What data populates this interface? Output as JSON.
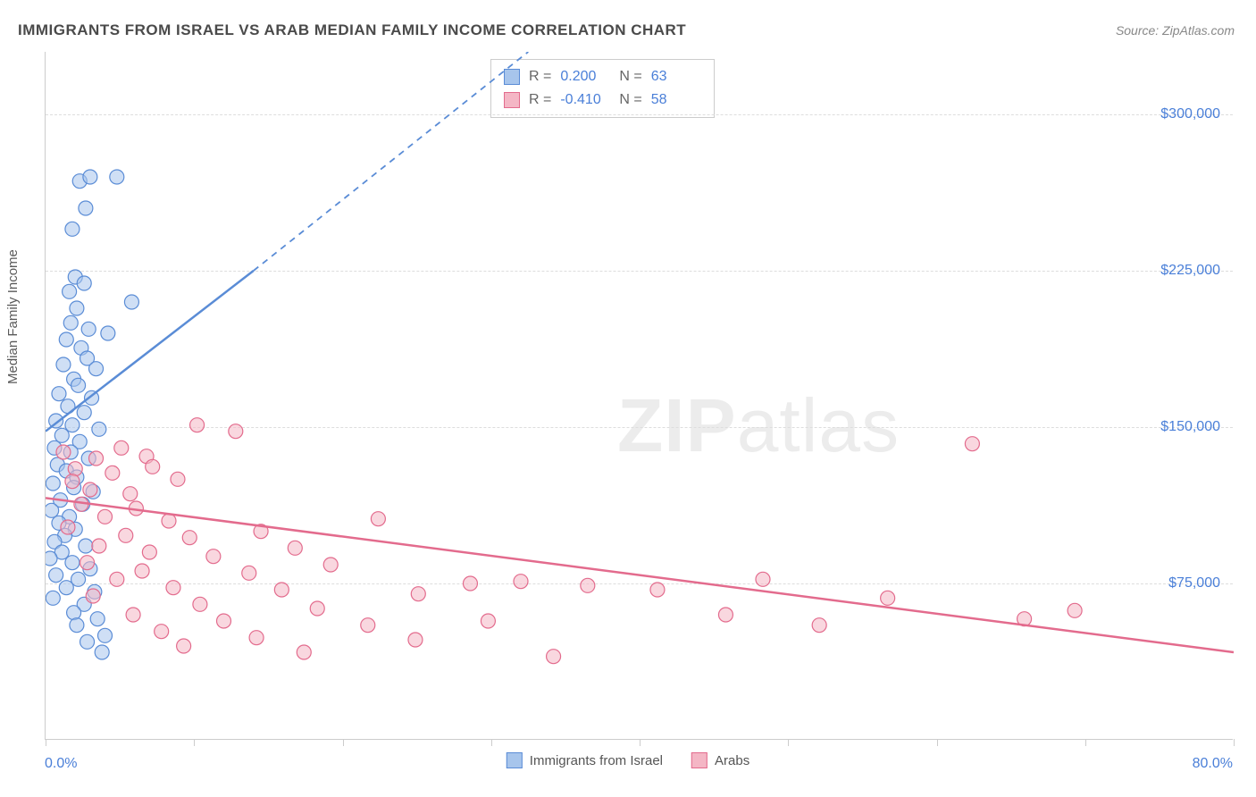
{
  "title": "IMMIGRANTS FROM ISRAEL VS ARAB MEDIAN FAMILY INCOME CORRELATION CHART",
  "source": "Source: ZipAtlas.com",
  "ylabel": "Median Family Income",
  "watermark_bold": "ZIP",
  "watermark_light": "atlas",
  "chart": {
    "type": "scatter",
    "xlim": [
      0,
      80
    ],
    "ylim": [
      0,
      330000
    ],
    "x_tick_positions": [
      0,
      10,
      20,
      30,
      40,
      50,
      60,
      70,
      80
    ],
    "x_tick_labels": {
      "left": "0.0%",
      "right": "80.0%"
    },
    "y_ticks": [
      {
        "value": 75000,
        "label": "$75,000"
      },
      {
        "value": 150000,
        "label": "$150,000"
      },
      {
        "value": 225000,
        "label": "$225,000"
      },
      {
        "value": 300000,
        "label": "$300,000"
      }
    ],
    "grid_color": "#dddddd",
    "axis_color": "#cccccc",
    "background_color": "#ffffff",
    "tick_label_color": "#4a7fd8",
    "marker_radius": 8,
    "marker_opacity": 0.55,
    "trend_line_width": 2.5,
    "series": [
      {
        "name": "Immigrants from Israel",
        "color_fill": "#a7c5ec",
        "color_stroke": "#5a8cd6",
        "r": 0.2,
        "n": 63,
        "trend": {
          "solid": {
            "x1": 0,
            "y1": 148000,
            "x2": 14,
            "y2": 225000
          },
          "dashed": {
            "x1": 14,
            "y1": 225000,
            "x2": 32.5,
            "y2": 330000
          }
        },
        "points": [
          [
            2.3,
            268000
          ],
          [
            3.0,
            270000
          ],
          [
            4.8,
            270000
          ],
          [
            2.7,
            255000
          ],
          [
            1.8,
            245000
          ],
          [
            2.0,
            222000
          ],
          [
            2.6,
            219000
          ],
          [
            1.6,
            215000
          ],
          [
            2.1,
            207000
          ],
          [
            5.8,
            210000
          ],
          [
            1.7,
            200000
          ],
          [
            2.9,
            197000
          ],
          [
            4.2,
            195000
          ],
          [
            1.4,
            192000
          ],
          [
            2.4,
            188000
          ],
          [
            2.8,
            183000
          ],
          [
            1.2,
            180000
          ],
          [
            3.4,
            178000
          ],
          [
            1.9,
            173000
          ],
          [
            2.2,
            170000
          ],
          [
            0.9,
            166000
          ],
          [
            3.1,
            164000
          ],
          [
            1.5,
            160000
          ],
          [
            2.6,
            157000
          ],
          [
            0.7,
            153000
          ],
          [
            1.8,
            151000
          ],
          [
            3.6,
            149000
          ],
          [
            1.1,
            146000
          ],
          [
            2.3,
            143000
          ],
          [
            0.6,
            140000
          ],
          [
            1.7,
            138000
          ],
          [
            2.9,
            135000
          ],
          [
            0.8,
            132000
          ],
          [
            1.4,
            129000
          ],
          [
            2.1,
            126000
          ],
          [
            0.5,
            123000
          ],
          [
            1.9,
            121000
          ],
          [
            3.2,
            119000
          ],
          [
            1.0,
            115000
          ],
          [
            2.5,
            113000
          ],
          [
            0.4,
            110000
          ],
          [
            1.6,
            107000
          ],
          [
            0.9,
            104000
          ],
          [
            2.0,
            101000
          ],
          [
            1.3,
            98000
          ],
          [
            0.6,
            95000
          ],
          [
            2.7,
            93000
          ],
          [
            1.1,
            90000
          ],
          [
            0.3,
            87000
          ],
          [
            1.8,
            85000
          ],
          [
            3.0,
            82000
          ],
          [
            0.7,
            79000
          ],
          [
            2.2,
            77000
          ],
          [
            1.4,
            73000
          ],
          [
            3.3,
            71000
          ],
          [
            0.5,
            68000
          ],
          [
            2.6,
            65000
          ],
          [
            1.9,
            61000
          ],
          [
            3.5,
            58000
          ],
          [
            2.1,
            55000
          ],
          [
            4.0,
            50000
          ],
          [
            2.8,
            47000
          ],
          [
            3.8,
            42000
          ]
        ]
      },
      {
        "name": "Arabs",
        "color_fill": "#f4b6c5",
        "color_stroke": "#e36b8d",
        "r": -0.41,
        "n": 58,
        "trend": {
          "solid": {
            "x1": 0,
            "y1": 116000,
            "x2": 80,
            "y2": 42000
          },
          "dashed": null
        },
        "points": [
          [
            1.2,
            138000
          ],
          [
            3.4,
            135000
          ],
          [
            5.1,
            140000
          ],
          [
            6.8,
            136000
          ],
          [
            2.0,
            130000
          ],
          [
            4.5,
            128000
          ],
          [
            7.2,
            131000
          ],
          [
            1.8,
            124000
          ],
          [
            8.9,
            125000
          ],
          [
            3.0,
            120000
          ],
          [
            5.7,
            118000
          ],
          [
            10.2,
            151000
          ],
          [
            2.4,
            113000
          ],
          [
            6.1,
            111000
          ],
          [
            12.8,
            148000
          ],
          [
            4.0,
            107000
          ],
          [
            8.3,
            105000
          ],
          [
            1.5,
            102000
          ],
          [
            14.5,
            100000
          ],
          [
            5.4,
            98000
          ],
          [
            9.7,
            97000
          ],
          [
            3.6,
            93000
          ],
          [
            16.8,
            92000
          ],
          [
            7.0,
            90000
          ],
          [
            11.3,
            88000
          ],
          [
            2.8,
            85000
          ],
          [
            19.2,
            84000
          ],
          [
            6.5,
            81000
          ],
          [
            13.7,
            80000
          ],
          [
            4.8,
            77000
          ],
          [
            22.4,
            106000
          ],
          [
            8.6,
            73000
          ],
          [
            15.9,
            72000
          ],
          [
            3.2,
            69000
          ],
          [
            25.1,
            70000
          ],
          [
            10.4,
            65000
          ],
          [
            18.3,
            63000
          ],
          [
            5.9,
            60000
          ],
          [
            28.6,
            75000
          ],
          [
            12.0,
            57000
          ],
          [
            21.7,
            55000
          ],
          [
            7.8,
            52000
          ],
          [
            32.0,
            76000
          ],
          [
            14.2,
            49000
          ],
          [
            24.9,
            48000
          ],
          [
            9.3,
            45000
          ],
          [
            36.5,
            74000
          ],
          [
            17.4,
            42000
          ],
          [
            29.8,
            57000
          ],
          [
            41.2,
            72000
          ],
          [
            45.8,
            60000
          ],
          [
            48.3,
            77000
          ],
          [
            52.1,
            55000
          ],
          [
            56.7,
            68000
          ],
          [
            62.4,
            142000
          ],
          [
            65.9,
            58000
          ],
          [
            69.3,
            62000
          ],
          [
            34.2,
            40000
          ]
        ]
      }
    ]
  },
  "correlation_box": {
    "rows": [
      {
        "swatch_fill": "#a7c5ec",
        "swatch_stroke": "#5a8cd6",
        "r_label": "R =",
        "r_value": "0.200",
        "n_label": "N =",
        "n_value": "63"
      },
      {
        "swatch_fill": "#f4b6c5",
        "swatch_stroke": "#e36b8d",
        "r_label": "R =",
        "r_value": "-0.410",
        "n_label": "N =",
        "n_value": "58"
      }
    ]
  },
  "legend": [
    {
      "fill": "#a7c5ec",
      "stroke": "#5a8cd6",
      "label": "Immigrants from Israel"
    },
    {
      "fill": "#f4b6c5",
      "stroke": "#e36b8d",
      "label": "Arabs"
    }
  ]
}
